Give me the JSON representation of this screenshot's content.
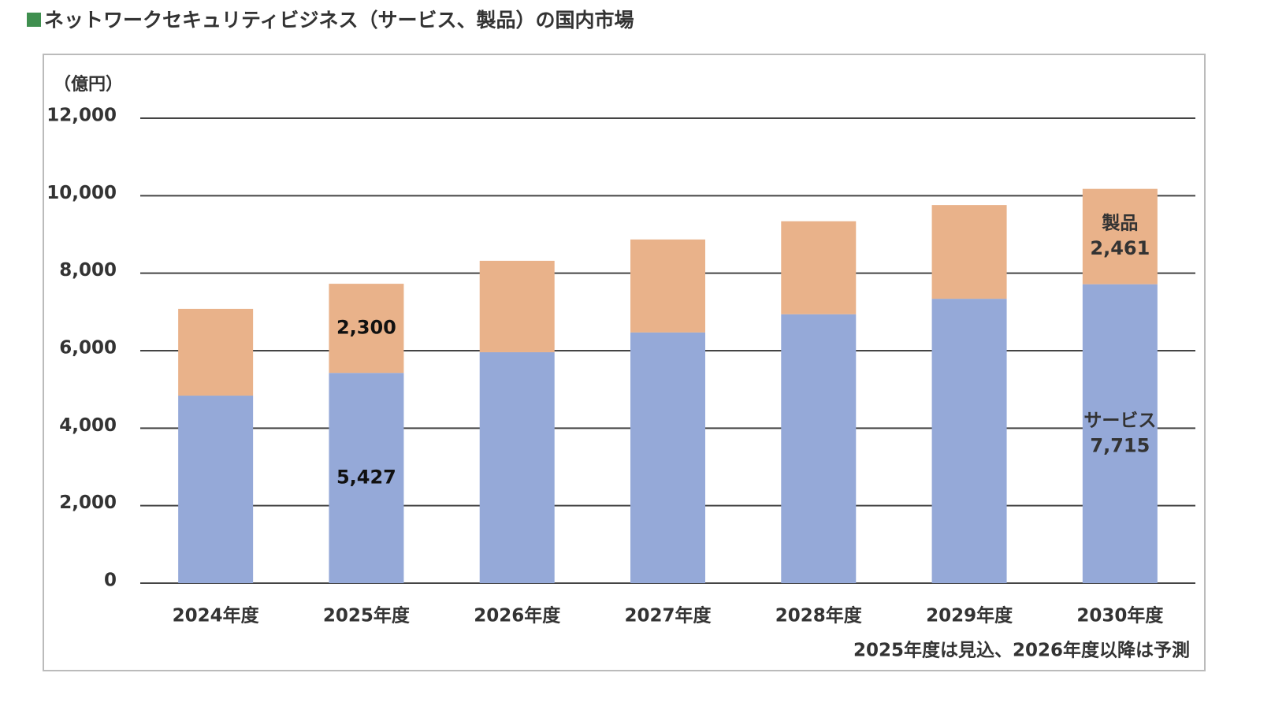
{
  "chart_data": {
    "type": "stacked-bar",
    "title": "ネットワークセキュリティビジネス（サービス、製品）の国内市場",
    "y_label": "（億円）",
    "annotation": "2025年度は見込、2026年度以降は予測",
    "categories": [
      "2024年度",
      "2025年度",
      "2026年度",
      "2027年度",
      "2028年度",
      "2029年度",
      "2030年度"
    ],
    "series": [
      {
        "name": "サービス",
        "color": "#95a9d8",
        "values": [
          4840,
          5427,
          5960,
          6470,
          6940,
          7340,
          7715
        ],
        "value_labels": [
          null,
          "5,427",
          null,
          null,
          null,
          null,
          "7,715"
        ]
      },
      {
        "name": "製品",
        "color": "#e9b28a",
        "values": [
          2240,
          2300,
          2360,
          2400,
          2400,
          2420,
          2461
        ],
        "value_labels": [
          null,
          "2,300",
          null,
          null,
          null,
          null,
          "2,461"
        ]
      }
    ],
    "ylim": [
      0,
      12000
    ],
    "yticks": [
      {
        "value": 0,
        "label": "0"
      },
      {
        "value": 2000,
        "label": "2,000"
      },
      {
        "value": 4000,
        "label": "4,000"
      },
      {
        "value": 6000,
        "label": "6,000"
      },
      {
        "value": 8000,
        "label": "8,000"
      },
      {
        "value": 10000,
        "label": "10,000"
      },
      {
        "value": 12000,
        "label": "12,000"
      }
    ],
    "grid": true
  }
}
